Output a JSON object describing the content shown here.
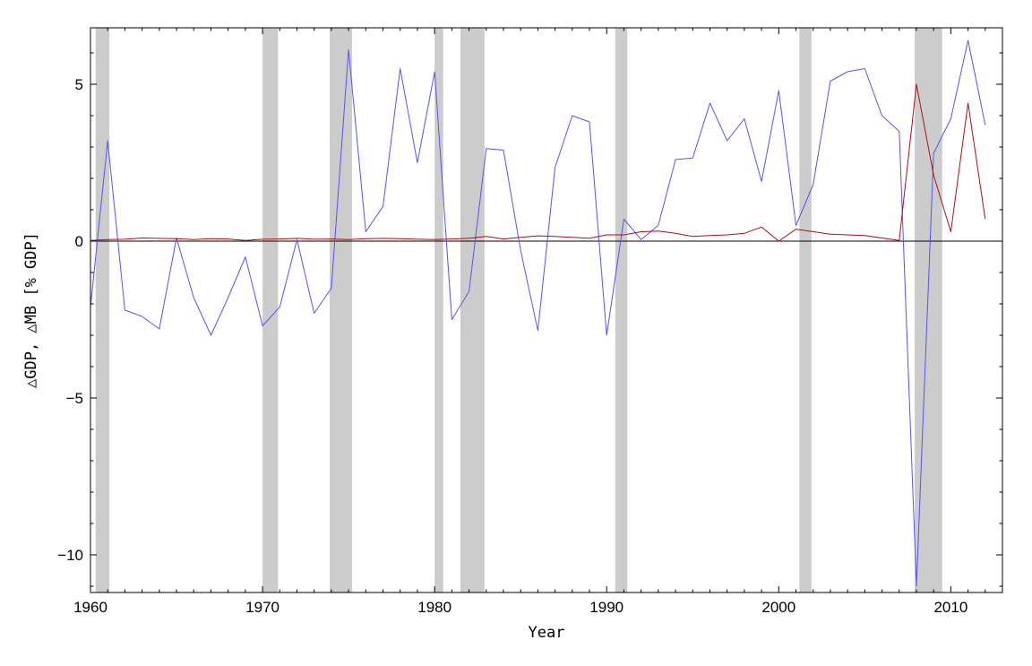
{
  "chart_data": {
    "type": "line",
    "title": "",
    "xlabel": "Year",
    "ylabel": "△GDP, △MB [% GDP]",
    "xlim": [
      1960,
      2013
    ],
    "ylim": [
      -11.2,
      6.8
    ],
    "xticks": [
      1960,
      1970,
      1980,
      1990,
      2000,
      2010
    ],
    "yticks": [
      -10,
      -5,
      0,
      5
    ],
    "xtick_labels": [
      "1960",
      "1970",
      "1980",
      "1990",
      "2000",
      "2010"
    ],
    "ytick_labels": [
      "−10",
      "−5",
      "0",
      "5"
    ],
    "grid": false,
    "zero_line": true,
    "recessions": [
      [
        1960.3,
        1961.1
      ],
      [
        1970.0,
        1970.9
      ],
      [
        1973.9,
        1975.2
      ],
      [
        1980.0,
        1980.5
      ],
      [
        1981.5,
        1982.9
      ],
      [
        1990.5,
        1991.2
      ],
      [
        2001.2,
        2001.9
      ],
      [
        2007.9,
        2009.5
      ]
    ],
    "series": [
      {
        "color": "#5555ee",
        "x": [
          1960,
          1961,
          1962,
          1963,
          1964,
          1965,
          1966,
          1967,
          1968,
          1969,
          1970,
          1971,
          1972,
          1973,
          1974,
          1975,
          1976,
          1977,
          1978,
          1979,
          1980,
          1981,
          1982,
          1983,
          1984,
          1985,
          1986,
          1987,
          1988,
          1989,
          1990,
          1991,
          1992,
          1993,
          1994,
          1995,
          1996,
          1997,
          1998,
          1999,
          2000,
          2001,
          2002,
          2003,
          2004,
          2005,
          2006,
          2007,
          2008,
          2009,
          2010,
          2011,
          2012
        ],
        "y": [
          -2.1,
          3.2,
          -2.2,
          -2.4,
          -2.8,
          0.1,
          -1.8,
          -3.0,
          -1.8,
          -0.5,
          -2.7,
          -2.1,
          0.05,
          -2.3,
          -1.5,
          6.1,
          0.3,
          1.1,
          5.5,
          2.5,
          5.4,
          -2.5,
          -1.6,
          2.95,
          2.9,
          -0.3,
          -2.85,
          2.35,
          4.0,
          3.8,
          -3.0,
          0.7,
          0.05,
          0.5,
          2.6,
          2.65,
          4.4,
          3.2,
          3.9,
          1.9,
          4.8,
          0.5,
          1.8,
          5.1,
          5.4,
          5.5,
          4.0,
          3.5,
          -11.0,
          2.8,
          3.9,
          6.4,
          3.7
        ]
      },
      {
        "color": "#aa1111",
        "x": [
          1960,
          1961,
          1962,
          1963,
          1964,
          1965,
          1966,
          1967,
          1968,
          1969,
          1970,
          1971,
          1972,
          1973,
          1974,
          1975,
          1976,
          1977,
          1978,
          1979,
          1980,
          1981,
          1982,
          1983,
          1984,
          1985,
          1986,
          1987,
          1988,
          1989,
          1990,
          1991,
          1992,
          1993,
          1994,
          1995,
          1996,
          1997,
          1998,
          1999,
          2000,
          2001,
          2002,
          2003,
          2004,
          2005,
          2006,
          2007,
          2008,
          2009,
          2010,
          2011,
          2012
        ],
        "y": [
          0.02,
          0.05,
          0.06,
          0.1,
          0.09,
          0.08,
          0.05,
          0.08,
          0.07,
          0.02,
          0.06,
          0.07,
          0.09,
          0.06,
          0.07,
          0.05,
          0.08,
          0.09,
          0.08,
          0.06,
          0.05,
          0.07,
          0.09,
          0.15,
          0.07,
          0.12,
          0.17,
          0.15,
          0.12,
          0.09,
          0.2,
          0.2,
          0.3,
          0.32,
          0.25,
          0.15,
          0.18,
          0.2,
          0.25,
          0.45,
          0.0,
          0.38,
          0.3,
          0.22,
          0.2,
          0.18,
          0.1,
          0.02,
          5.0,
          2.1,
          0.3,
          4.4,
          0.7
        ]
      }
    ]
  }
}
